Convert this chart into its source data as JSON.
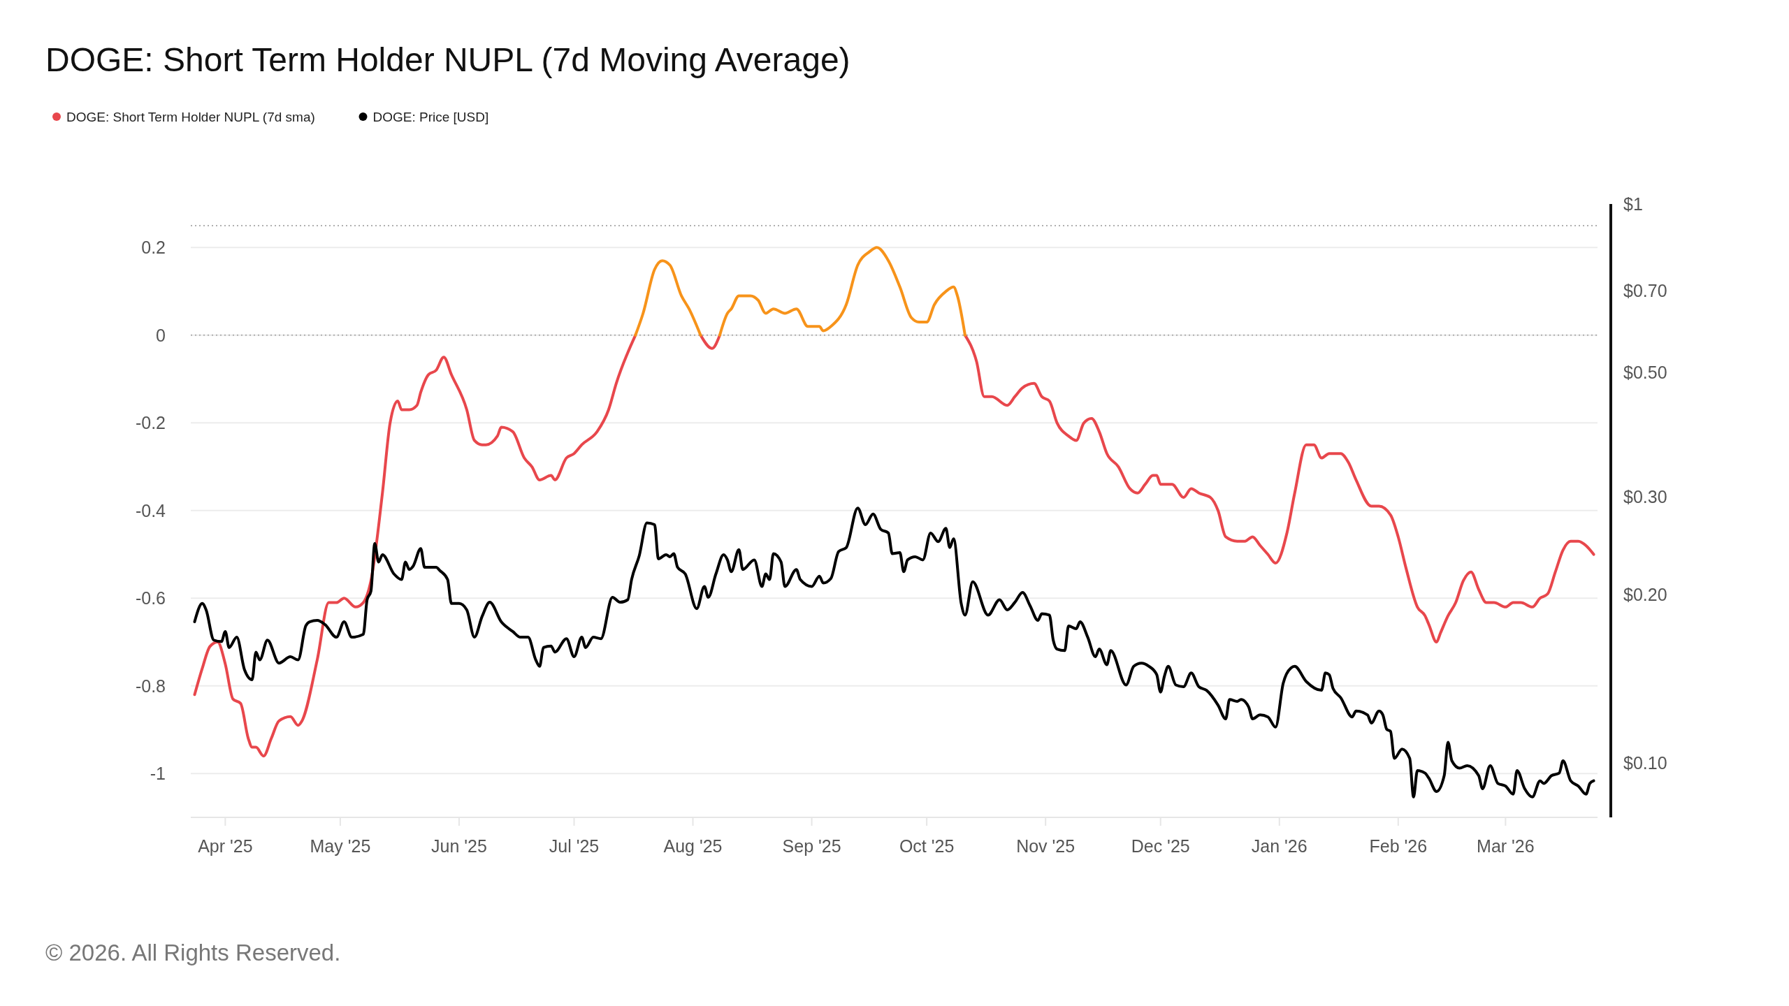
{
  "chart_data": {
    "type": "line",
    "title": "DOGE: Short Term Holder NUPL (7d Moving Average)",
    "xlim": [
      "2025-03-23",
      "2026-03-25"
    ],
    "xticks": [
      {
        "value": "2025-04-01",
        "label": "Apr '25"
      },
      {
        "value": "2025-05-01",
        "label": "May '25"
      },
      {
        "value": "2025-06-01",
        "label": "Jun '25"
      },
      {
        "value": "2025-07-01",
        "label": "Jul '25"
      },
      {
        "value": "2025-08-01",
        "label": "Aug '25"
      },
      {
        "value": "2025-09-01",
        "label": "Sep '25"
      },
      {
        "value": "2025-10-01",
        "label": "Oct '25"
      },
      {
        "value": "2025-11-01",
        "label": "Nov '25"
      },
      {
        "value": "2025-12-01",
        "label": "Dec '25"
      },
      {
        "value": "2026-01-01",
        "label": "Jan '26"
      },
      {
        "value": "2026-02-01",
        "label": "Feb '26"
      },
      {
        "value": "2026-03-01",
        "label": "Mar '26"
      }
    ],
    "ylim": [
      -1.1,
      0.25
    ],
    "yticks": [
      0.2,
      0,
      -0.2,
      -0.4,
      -0.6,
      -0.8,
      -1
    ],
    "y2lim": [
      0.08,
      1
    ],
    "y2ticks": [
      {
        "value": 1,
        "label": "$1"
      },
      {
        "value": 0.7,
        "label": "$0.70"
      },
      {
        "value": 0.5,
        "label": "$0.50"
      },
      {
        "value": 0.3,
        "label": "$0.30"
      },
      {
        "value": 0.2,
        "label": "$0.20"
      },
      {
        "value": 0.1,
        "label": "$0.10"
      }
    ],
    "log": "y2",
    "grid": "y",
    "legend": "top left",
    "line_style": "solid",
    "marker": "none",
    "ref_lines": [
      {
        "axis": "y",
        "value": 0,
        "label": null,
        "color": "#b0b0b0",
        "line_style": "dotted"
      },
      {
        "axis": "y",
        "value": 0.25,
        "label": null,
        "color": "#b0b0b0",
        "line_style": "dotted"
      }
    ],
    "annotations": [
      "© 2026. All Rights Reserved."
    ],
    "series": [
      {
        "name": "DOGE: Short Term Holder NUPL (7d sma)",
        "color": "#e8474c",
        "x": [
          "2025-03-24",
          "2025-03-26",
          "2025-03-28",
          "2025-03-30",
          "2025-04-01",
          "2025-04-03",
          "2025-04-05",
          "2025-04-07",
          "2025-04-08",
          "2025-04-09",
          "2025-04-11",
          "2025-04-13",
          "2025-04-15",
          "2025-04-18",
          "2025-04-20",
          "2025-04-21",
          "2025-04-25",
          "2025-04-28",
          "2025-04-30",
          "2025-05-02",
          "2025-05-05",
          "2025-05-07",
          "2025-05-09",
          "2025-05-12",
          "2025-05-14",
          "2025-05-16",
          "2025-05-17",
          "2025-05-19",
          "2025-05-21",
          "2025-05-22",
          "2025-05-24",
          "2025-05-26",
          "2025-05-28",
          "2025-05-30",
          "2025-06-03",
          "2025-06-05",
          "2025-06-07",
          "2025-06-08",
          "2025-06-11",
          "2025-06-12",
          "2025-06-15",
          "2025-06-18",
          "2025-06-20",
          "2025-06-22",
          "2025-06-25",
          "2025-06-26",
          "2025-06-29",
          "2025-07-01",
          "2025-07-03",
          "2025-07-07",
          "2025-07-10",
          "2025-07-12",
          "2025-07-17",
          "2025-07-25",
          "2025-08-03",
          "2025-08-06",
          "2025-08-08",
          "2025-09-01",
          "2025-10-11",
          "2025-10-14",
          "2025-10-16",
          "2025-10-18",
          "2025-10-22",
          "2025-10-24",
          "2025-10-26",
          "2025-10-29",
          "2025-10-31",
          "2025-11-02",
          "2025-11-04",
          "2025-11-07",
          "2025-11-09",
          "2025-11-11",
          "2025-11-13",
          "2025-11-15",
          "2025-11-17",
          "2025-11-20",
          "2025-11-23",
          "2025-11-25",
          "2025-11-27",
          "2025-11-29",
          "2025-11-30",
          "2025-12-01",
          "2025-12-04",
          "2025-12-07",
          "2025-12-09",
          "2025-12-11",
          "2025-12-14",
          "2025-12-16",
          "2025-12-18",
          "2025-12-21",
          "2025-12-23",
          "2025-12-25",
          "2025-12-27",
          "2025-12-29",
          "2025-12-31",
          "2026-01-03",
          "2026-01-05",
          "2026-01-08",
          "2026-01-10",
          "2026-01-12",
          "2026-01-14",
          "2026-01-17",
          "2026-01-19",
          "2026-01-21",
          "2026-01-25",
          "2026-01-27",
          "2026-01-30",
          "2026-02-01",
          "2026-02-03",
          "2026-02-06",
          "2026-02-08",
          "2026-02-09",
          "2026-02-11",
          "2026-02-12",
          "2026-02-14",
          "2026-02-16",
          "2026-02-18",
          "2026-02-20",
          "2026-02-22",
          "2026-02-24",
          "2026-02-26",
          "2026-03-01",
          "2026-03-03",
          "2026-03-05",
          "2026-03-08",
          "2026-03-10",
          "2026-03-12",
          "2026-03-14",
          "2026-03-16",
          "2026-03-18",
          "2026-03-20",
          "2026-03-22",
          "2026-03-24"
        ],
        "values": [
          -0.82,
          -0.76,
          -0.71,
          -0.7,
          -0.75,
          -0.83,
          -0.84,
          -0.92,
          -0.94,
          -0.94,
          -0.96,
          -0.92,
          -0.88,
          -0.87,
          -0.89,
          -0.88,
          -0.74,
          -0.61,
          -0.61,
          -0.6,
          -0.62,
          -0.61,
          -0.56,
          -0.36,
          -0.2,
          -0.15,
          -0.17,
          -0.17,
          -0.16,
          -0.13,
          -0.09,
          -0.08,
          -0.05,
          -0.09,
          -0.17,
          -0.24,
          -0.25,
          -0.25,
          -0.23,
          -0.21,
          -0.22,
          -0.28,
          -0.3,
          -0.33,
          -0.32,
          -0.33,
          -0.28,
          -0.27,
          -0.25,
          -0.22,
          -0.17,
          -0.11,
          0,
          null,
          0,
          -0.03,
          0,
          null,
          0,
          -0.06,
          -0.14,
          -0.14,
          -0.16,
          -0.14,
          -0.12,
          -0.11,
          -0.14,
          -0.15,
          -0.2,
          -0.23,
          -0.24,
          -0.2,
          -0.19,
          -0.22,
          -0.27,
          -0.3,
          -0.35,
          -0.36,
          -0.34,
          -0.32,
          -0.32,
          -0.34,
          -0.34,
          -0.37,
          -0.35,
          -0.36,
          -0.37,
          -0.4,
          -0.46,
          -0.47,
          -0.47,
          -0.46,
          -0.48,
          -0.5,
          -0.52,
          -0.45,
          -0.36,
          -0.25,
          -0.25,
          -0.28,
          -0.27,
          -0.27,
          -0.29,
          -0.33,
          -0.39,
          -0.39,
          -0.41,
          -0.46,
          -0.53,
          -0.62,
          -0.64,
          -0.66,
          -0.7,
          -0.68,
          -0.64,
          -0.61,
          -0.56,
          -0.54,
          -0.58,
          -0.61,
          -0.61,
          -0.62,
          -0.61,
          -0.61,
          -0.62,
          -0.6,
          -0.59,
          -0.54,
          -0.49,
          -0.47,
          -0.47,
          -0.48,
          -0.5
        ]
      },
      {
        "color": "#f7931a",
        "x": [
          "2025-07-17",
          "2025-07-19",
          "2025-07-22",
          "2025-07-24",
          "2025-07-26",
          "2025-07-29",
          "2025-07-31",
          "2025-08-03",
          "2025-08-06",
          "2025-08-08",
          "2025-08-10",
          "2025-08-11",
          "2025-08-13",
          "2025-08-16",
          "2025-08-18",
          "2025-08-20",
          "2025-08-22",
          "2025-08-25",
          "2025-08-28",
          "2025-08-31",
          "2025-09-03",
          "2025-09-04",
          "2025-09-06",
          "2025-09-10",
          "2025-09-13",
          "2025-09-16",
          "2025-09-18",
          "2025-09-21",
          "2025-09-24",
          "2025-09-27",
          "2025-09-29",
          "2025-10-01",
          "2025-10-03",
          "2025-10-06",
          "2025-10-08",
          "2025-10-09",
          "2025-10-11"
        ],
        "values": [
          0,
          0.05,
          0.15,
          0.17,
          0.16,
          0.09,
          0.06,
          0,
          null,
          0,
          0.05,
          0.06,
          0.09,
          0.09,
          0.08,
          0.05,
          0.06,
          0.05,
          0.06,
          0.02,
          0.02,
          0.01,
          0.02,
          0.07,
          0.16,
          0.19,
          0.2,
          0.17,
          0.11,
          0.04,
          0.03,
          0.03,
          0.07,
          0.1,
          0.11,
          0.09,
          0
        ]
      },
      {
        "name": "DOGE: Price [USD]",
        "color": "#000000",
        "axis": "y2",
        "x": [
          "2025-03-24",
          "2025-03-26",
          "2025-03-27",
          "2025-03-29",
          "2025-03-31",
          "2025-04-01",
          "2025-04-02",
          "2025-04-04",
          "2025-04-06",
          "2025-04-08",
          "2025-04-09",
          "2025-04-10",
          "2025-04-12",
          "2025-04-15",
          "2025-04-18",
          "2025-04-20",
          "2025-04-22",
          "2025-04-23",
          "2025-04-25",
          "2025-04-27",
          "2025-04-30",
          "2025-05-02",
          "2025-05-04",
          "2025-05-07",
          "2025-05-08",
          "2025-05-09",
          "2025-05-10",
          "2025-05-11",
          "2025-05-12",
          "2025-05-15",
          "2025-05-17",
          "2025-05-18",
          "2025-05-19",
          "2025-05-20",
          "2025-05-22",
          "2025-05-23",
          "2025-05-26",
          "2025-05-27",
          "2025-05-29",
          "2025-05-30",
          "2025-06-01",
          "2025-06-03",
          "2025-06-05",
          "2025-06-07",
          "2025-06-09",
          "2025-06-12",
          "2025-06-15",
          "2025-06-17",
          "2025-06-19",
          "2025-06-21",
          "2025-06-22",
          "2025-06-23",
          "2025-06-25",
          "2025-06-26",
          "2025-06-29",
          "2025-07-01",
          "2025-07-03",
          "2025-07-04",
          "2025-07-06",
          "2025-07-08",
          "2025-07-11",
          "2025-07-13",
          "2025-07-15",
          "2025-07-16",
          "2025-07-18",
          "2025-07-20",
          "2025-07-22",
          "2025-07-23",
          "2025-07-25",
          "2025-07-26",
          "2025-07-27",
          "2025-07-28",
          "2025-07-30",
          "2025-08-02",
          "2025-08-04",
          "2025-08-05",
          "2025-08-07",
          "2025-08-09",
          "2025-08-10",
          "2025-08-11",
          "2025-08-13",
          "2025-08-14",
          "2025-08-17",
          "2025-08-19",
          "2025-08-20",
          "2025-08-21",
          "2025-08-22",
          "2025-08-24",
          "2025-08-25",
          "2025-08-28",
          "2025-08-29",
          "2025-09-01",
          "2025-09-03",
          "2025-09-04",
          "2025-09-06",
          "2025-09-08",
          "2025-09-10",
          "2025-09-13",
          "2025-09-15",
          "2025-09-17",
          "2025-09-19",
          "2025-09-21",
          "2025-09-22",
          "2025-09-24",
          "2025-09-25",
          "2025-09-26",
          "2025-09-28",
          "2025-09-30",
          "2025-10-02",
          "2025-10-04",
          "2025-10-06",
          "2025-10-07",
          "2025-10-08",
          "2025-10-10",
          "2025-10-11",
          "2025-10-13",
          "2025-10-17",
          "2025-10-20",
          "2025-10-22",
          "2025-10-24",
          "2025-10-26",
          "2025-10-28",
          "2025-10-30",
          "2025-10-31",
          "2025-11-02",
          "2025-11-03",
          "2025-11-04",
          "2025-11-06",
          "2025-11-07",
          "2025-11-09",
          "2025-11-10",
          "2025-11-12",
          "2025-11-14",
          "2025-11-15",
          "2025-11-17",
          "2025-11-18",
          "2025-11-22",
          "2025-11-24",
          "2025-11-26",
          "2025-11-28",
          "2025-11-30",
          "2025-12-01",
          "2025-12-02",
          "2025-12-03",
          "2025-12-05",
          "2025-12-07",
          "2025-12-09",
          "2025-12-11",
          "2025-12-13",
          "2025-12-16",
          "2025-12-18",
          "2025-12-19",
          "2025-12-21",
          "2025-12-22",
          "2025-12-24",
          "2025-12-25",
          "2025-12-27",
          "2025-12-29",
          "2025-12-31",
          "2026-01-02",
          "2026-01-04",
          "2026-01-05",
          "2026-01-08",
          "2026-01-12",
          "2026-01-13",
          "2026-01-14",
          "2026-01-15",
          "2026-01-17",
          "2026-01-20",
          "2026-01-21",
          "2026-01-24",
          "2026-01-25",
          "2026-01-27",
          "2026-01-28",
          "2026-01-29",
          "2026-01-30",
          "2026-01-31",
          "2026-02-02",
          "2026-02-04",
          "2026-02-05",
          "2026-02-06",
          "2026-02-08",
          "2026-02-09",
          "2026-02-11",
          "2026-02-13",
          "2026-02-14",
          "2026-02-15",
          "2026-02-17",
          "2026-02-19",
          "2026-02-22",
          "2026-02-23",
          "2026-02-25",
          "2026-02-27",
          "2026-03-01",
          "2026-03-03",
          "2026-03-04",
          "2026-03-06",
          "2026-03-08",
          "2026-03-10",
          "2026-03-11",
          "2026-03-13",
          "2026-03-15",
          "2026-03-16",
          "2026-03-18",
          "2026-03-20",
          "2026-03-22",
          "2026-03-23",
          "2026-03-24"
        ],
        "values": [
          0.179,
          0.193,
          0.188,
          0.166,
          0.165,
          0.172,
          0.161,
          0.168,
          0.147,
          0.141,
          0.158,
          0.153,
          0.166,
          0.151,
          0.155,
          0.153,
          0.176,
          0.179,
          0.18,
          0.177,
          0.168,
          0.179,
          0.168,
          0.17,
          0.196,
          0.203,
          0.247,
          0.229,
          0.236,
          0.218,
          0.213,
          0.229,
          0.222,
          0.225,
          0.242,
          0.224,
          0.224,
          0.221,
          0.213,
          0.193,
          0.193,
          0.188,
          0.168,
          0.183,
          0.194,
          0.179,
          0.172,
          0.168,
          0.168,
          0.153,
          0.149,
          0.161,
          0.162,
          0.158,
          0.167,
          0.155,
          0.168,
          0.161,
          0.168,
          0.167,
          0.198,
          0.194,
          0.196,
          0.213,
          0.235,
          0.269,
          0.267,
          0.232,
          0.236,
          0.234,
          0.237,
          0.224,
          0.218,
          0.189,
          0.207,
          0.198,
          0.218,
          0.236,
          0.231,
          0.22,
          0.241,
          0.222,
          0.231,
          0.207,
          0.218,
          0.213,
          0.237,
          0.229,
          0.207,
          0.222,
          0.213,
          0.207,
          0.216,
          0.21,
          0.214,
          0.239,
          0.243,
          0.286,
          0.267,
          0.279,
          0.262,
          0.258,
          0.237,
          0.238,
          0.22,
          0.231,
          0.234,
          0.231,
          0.258,
          0.249,
          0.263,
          0.243,
          0.252,
          0.193,
          0.184,
          0.211,
          0.184,
          0.196,
          0.188,
          0.194,
          0.202,
          0.191,
          0.18,
          0.185,
          0.184,
          0.166,
          0.16,
          0.159,
          0.176,
          0.174,
          0.179,
          0.168,
          0.155,
          0.16,
          0.15,
          0.159,
          0.138,
          0.149,
          0.151,
          0.149,
          0.144,
          0.134,
          0.143,
          0.149,
          0.138,
          0.137,
          0.145,
          0.137,
          0.135,
          0.127,
          0.12,
          0.13,
          0.129,
          0.13,
          0.126,
          0.12,
          0.122,
          0.121,
          0.116,
          0.139,
          0.148,
          0.149,
          0.14,
          0.135,
          0.145,
          0.144,
          0.136,
          0.131,
          0.121,
          0.124,
          0.122,
          0.118,
          0.124,
          0.122,
          0.115,
          0.114,
          0.102,
          0.106,
          0.102,
          0.087,
          0.097,
          0.096,
          0.094,
          0.089,
          0.095,
          0.109,
          0.101,
          0.098,
          0.099,
          0.095,
          0.09,
          0.099,
          0.092,
          0.091,
          0.088,
          0.097,
          0.09,
          0.087,
          0.093,
          0.092,
          0.095,
          0.096,
          0.101,
          0.093,
          0.091,
          0.088,
          0.092,
          0.093
        ]
      }
    ]
  }
}
